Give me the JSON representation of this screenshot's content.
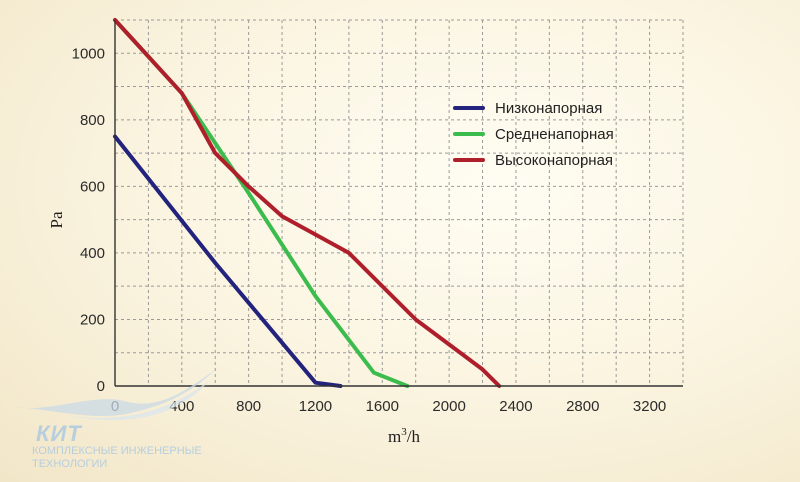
{
  "chart_data": {
    "type": "line",
    "xlabel_base": "m",
    "xlabel_sup": "3",
    "xlabel_rest": "/h",
    "ylabel": "Pa",
    "xlim": [
      0,
      3400
    ],
    "ylim": [
      0,
      1100
    ],
    "x_ticks": [
      0,
      400,
      800,
      1200,
      1600,
      2000,
      2400,
      2800,
      3200
    ],
    "y_ticks": [
      0,
      200,
      400,
      600,
      800,
      1000
    ],
    "x_grid_step": 200,
    "y_grid_step": 100,
    "grid": true,
    "legend_position": "top-right",
    "series": [
      {
        "name": "Низконапорная",
        "color": "#23237e",
        "points": [
          [
            0,
            750
          ],
          [
            300,
            560
          ],
          [
            600,
            370
          ],
          [
            900,
            190
          ],
          [
            1200,
            10
          ],
          [
            1350,
            0
          ]
        ]
      },
      {
        "name": "Средненапорная",
        "color": "#3dbc4e",
        "points": [
          [
            0,
            1100
          ],
          [
            400,
            880
          ],
          [
            800,
            580
          ],
          [
            1200,
            270
          ],
          [
            1550,
            40
          ],
          [
            1750,
            0
          ]
        ]
      },
      {
        "name": "Высоконапорная",
        "color": "#ae1f2b",
        "points": [
          [
            0,
            1100
          ],
          [
            400,
            880
          ],
          [
            600,
            700
          ],
          [
            800,
            600
          ],
          [
            1000,
            510
          ],
          [
            1400,
            400
          ],
          [
            1800,
            200
          ],
          [
            2200,
            50
          ],
          [
            2300,
            0
          ]
        ]
      }
    ]
  },
  "logo": {
    "title": "КИТ",
    "line1": "КОМПЛЕКСНЫЕ ИНЖЕНЕРНЫЕ",
    "line2": "ТЕХНОЛОГИИ"
  }
}
